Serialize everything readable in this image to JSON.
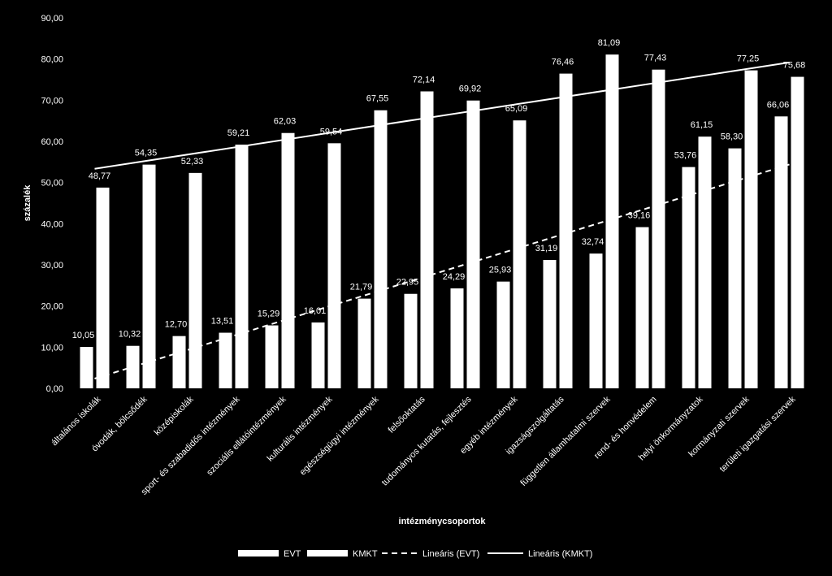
{
  "chart_data": {
    "type": "bar",
    "xlabel": "intézménycsoportok",
    "ylabel": "százalék",
    "ylim": [
      0,
      90
    ],
    "y_ticks": [
      "0,00",
      "10,00",
      "20,00",
      "30,00",
      "40,00",
      "50,00",
      "60,00",
      "70,00",
      "80,00",
      "90,00"
    ],
    "grid": false,
    "legend_position": "bottom",
    "categories": [
      "általános iskolák",
      "óvodák, bölcsődék",
      "középiskolák",
      "sport- és szabadidős intézmények",
      "szociális ellátóintézmények",
      "kulturális intézmények",
      "egészségügyi intézmények",
      "felsőoktatás",
      "tudományos kutatás, fejlesztés",
      "egyéb intézmények",
      "igazságszolgáltatás",
      "független államhatalmi szervek",
      "rend- és honvédelem",
      "helyi önkormányzatok",
      "kormányzati szervek",
      "területi igazgatási szervek"
    ],
    "series": [
      {
        "name": "EVT",
        "values": [
          10.05,
          10.32,
          12.7,
          13.51,
          15.29,
          16.01,
          21.79,
          22.95,
          24.29,
          25.93,
          31.19,
          32.74,
          39.16,
          53.76,
          58.3,
          66.06
        ],
        "labels": [
          "10,05",
          "10,32",
          "12,70",
          "13,51",
          "15,29",
          "16,01",
          "21,79",
          "22,95",
          "24,29",
          "25,93",
          "31,19",
          "32,74",
          "39,16",
          "53,76",
          "58,30",
          "66,06"
        ]
      },
      {
        "name": "KMKT",
        "values": [
          48.77,
          54.35,
          52.33,
          59.21,
          62.03,
          59.54,
          67.55,
          72.14,
          69.92,
          65.09,
          76.46,
          81.09,
          77.43,
          61.15,
          77.25,
          75.68
        ],
        "labels": [
          "48,77",
          "54,35",
          "52,33",
          "59,21",
          "62,03",
          "59,54",
          "67,55",
          "72,14",
          "69,92",
          "65,09",
          "76,46",
          "81,09",
          "77,43",
          "61,15",
          "77,25",
          "75,68"
        ]
      }
    ],
    "trendlines": [
      {
        "name": "Lineáris (EVT)",
        "series": "EVT",
        "style": "dashed"
      },
      {
        "name": "Lineáris (KMKT)",
        "series": "KMKT",
        "style": "solid"
      }
    ],
    "colors": {
      "background": "#000000",
      "bars": "#ffffff",
      "text": "#ffffff"
    }
  }
}
